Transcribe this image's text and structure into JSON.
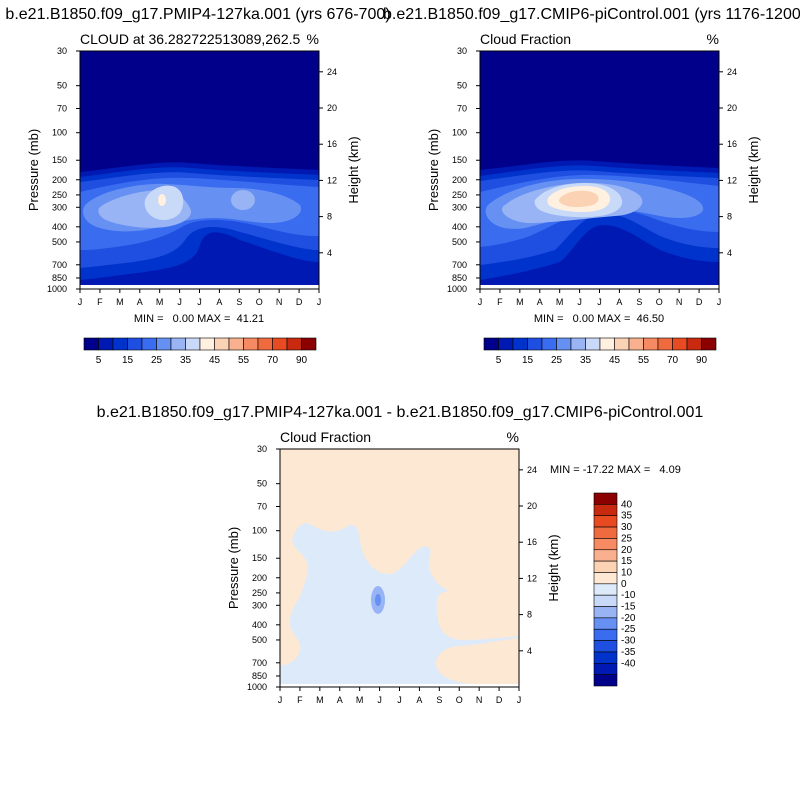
{
  "colors": {
    "seq_palette": [
      "#00008b",
      "#0019b3",
      "#0033cc",
      "#1f4fe0",
      "#3a6cf0",
      "#6690f2",
      "#98b4f5",
      "#c8daf8",
      "#fff0e0",
      "#fcd2b4",
      "#f9b08e",
      "#f68a62",
      "#f06a40",
      "#e84a22",
      "#c82a10",
      "#8b0000"
    ],
    "diff_palette": [
      "#00008b",
      "#0019b3",
      "#0033cc",
      "#1f4fe0",
      "#3a6cf0",
      "#6690f2",
      "#98b4f5",
      "#c8daf8",
      "#ddeaf9",
      "#fde8d4",
      "#fcd2b4",
      "#f9b08e",
      "#f68a62",
      "#f06a40",
      "#e84a22",
      "#c82a10",
      "#8b0000"
    ]
  },
  "chart_data": [
    {
      "type": "heatmap",
      "title": "b.e21.B1850.f09_g17.PMIP4-127ka.001 (yrs 676-700)",
      "left_label": "CLOUD at 36.282722513089,262.5",
      "right_label": "%",
      "xlabel": "",
      "ylabel": "Pressure (mb)",
      "ylabel_right": "Height (km)",
      "x_ticks": [
        "J",
        "F",
        "M",
        "A",
        "M",
        "J",
        "J",
        "A",
        "S",
        "O",
        "N",
        "D",
        "J"
      ],
      "y_ticks": [
        "30",
        "50",
        "70",
        "100",
        "150",
        "200",
        "250",
        "300",
        "400",
        "500",
        "700",
        "850",
        "1000"
      ],
      "y_right_ticks": [
        "24",
        "20",
        "16",
        "12",
        "8",
        "4"
      ],
      "stats": "MIN =   0.00 MAX =  41.21",
      "colorbar_labels": [
        "5",
        "15",
        "25",
        "35",
        "45",
        "55",
        "70",
        "90"
      ]
    },
    {
      "type": "heatmap",
      "title": "b.e21.B1850.f09_g17.CMIP6-piControl.001 (yrs 1176-1200)",
      "left_label": "Cloud Fraction",
      "right_label": "%",
      "xlabel": "",
      "ylabel": "Pressure (mb)",
      "ylabel_right": "Height (km)",
      "x_ticks": [
        "J",
        "F",
        "M",
        "A",
        "M",
        "J",
        "J",
        "A",
        "S",
        "O",
        "N",
        "D",
        "J"
      ],
      "y_ticks": [
        "30",
        "50",
        "70",
        "100",
        "150",
        "200",
        "250",
        "300",
        "400",
        "500",
        "700",
        "850",
        "1000"
      ],
      "y_right_ticks": [
        "24",
        "20",
        "16",
        "12",
        "8",
        "4"
      ],
      "stats": "MIN =   0.00 MAX =  46.50",
      "colorbar_labels": [
        "5",
        "15",
        "25",
        "35",
        "45",
        "55",
        "70",
        "90"
      ]
    },
    {
      "type": "heatmap",
      "title": "b.e21.B1850.f09_g17.PMIP4-127ka.001 - b.e21.B1850.f09_g17.CMIP6-piControl.001",
      "left_label": "Cloud Fraction",
      "right_label": "%",
      "xlabel": "",
      "ylabel": "Pressure (mb)",
      "ylabel_right": "Height (km)",
      "x_ticks": [
        "J",
        "F",
        "M",
        "A",
        "M",
        "J",
        "J",
        "A",
        "S",
        "O",
        "N",
        "D",
        "J"
      ],
      "y_ticks": [
        "30",
        "50",
        "70",
        "100",
        "150",
        "200",
        "250",
        "300",
        "400",
        "500",
        "700",
        "850",
        "1000"
      ],
      "y_right_ticks": [
        "24",
        "20",
        "16",
        "12",
        "8",
        "4"
      ],
      "stats": "MIN = -17.22 MAX =   4.09",
      "colorbar_labels": [
        "40",
        "35",
        "30",
        "25",
        "20",
        "15",
        "10",
        "0",
        "-10",
        "-15",
        "-20",
        "-25",
        "-30",
        "-35",
        "-40"
      ]
    }
  ]
}
